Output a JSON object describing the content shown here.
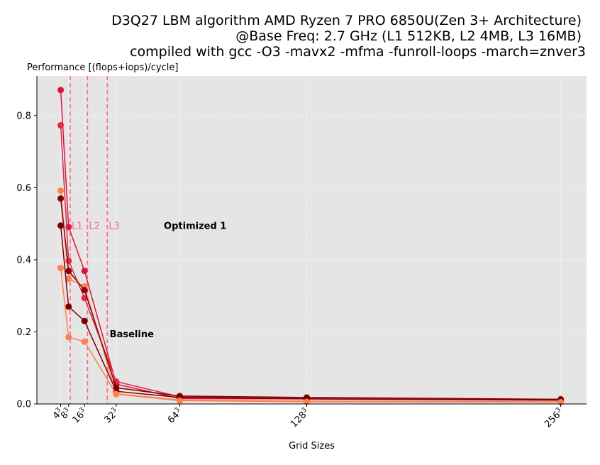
{
  "chart_data": {
    "type": "line",
    "title_lines": [
      "D3Q27 LBM algorithm AMD Ryzen 7 PRO 6850U(Zen 3+ Architecture)",
      "@Base Freq: 2.7 GHz (L1 512KB, L2 4MB, L3 16MB)",
      "compiled with gcc -O3 -mavx2 -mfma -funroll-loops -march=znver3"
    ],
    "xlabel": "Grid Sizes",
    "ylabel": "Performance [(flops+iops)/cycle]",
    "x": [
      4,
      8,
      16,
      32,
      64,
      128,
      256
    ],
    "x_ticks": [
      {
        "x": 4,
        "base": "4",
        "exp": "3"
      },
      {
        "x": 8,
        "base": "8",
        "exp": "3"
      },
      {
        "x": 16,
        "base": "16",
        "exp": "3"
      },
      {
        "x": 32,
        "base": "32",
        "exp": "3"
      },
      {
        "x": 64,
        "base": "64",
        "exp": "3"
      },
      {
        "x": 128,
        "base": "128",
        "exp": "3"
      },
      {
        "x": 256,
        "base": "256",
        "exp": "3"
      }
    ],
    "ylim": [
      0,
      0.91
    ],
    "xlim": [
      -8,
      269
    ],
    "y_ticks": [
      {
        "y": 0.0,
        "label": "0.0"
      },
      {
        "y": 0.2,
        "label": "0.2"
      },
      {
        "y": 0.4,
        "label": "0.4"
      },
      {
        "y": 0.6,
        "label": "0.6"
      },
      {
        "y": 0.8,
        "label": "0.8"
      }
    ],
    "grid": true,
    "background": "#e5e5e5",
    "cache_lines": [
      {
        "label": "L1",
        "x": 8.8
      },
      {
        "label": "L2",
        "x": 17.5
      },
      {
        "label": "L3",
        "x": 27.5
      }
    ],
    "cache_line_color": "#ff6b82",
    "annotations": [
      {
        "text": "Optimized 1",
        "x": 56,
        "y": 0.495
      },
      {
        "text": "Baseline",
        "x": 28.7,
        "y": 0.195
      }
    ],
    "series": [
      {
        "color": "#dc143c",
        "values": [
          0.871,
          0.491,
          0.369,
          0.055,
          0.015,
          0.014,
          0.01
        ]
      },
      {
        "color": "#e0284a",
        "values": [
          0.773,
          0.397,
          0.294,
          0.062,
          0.02,
          0.016,
          0.012
        ]
      },
      {
        "color": "#ff7f50",
        "values": [
          0.592,
          0.347,
          0.326,
          0.028,
          0.011,
          0.008,
          0.006
        ]
      },
      {
        "color": "#8b0000",
        "values": [
          0.57,
          0.369,
          0.316,
          0.045,
          0.022,
          0.018,
          0.013
        ]
      },
      {
        "color": "#7a0000",
        "values": [
          0.495,
          0.27,
          0.23,
          0.035,
          0.018,
          0.014,
          0.011
        ]
      },
      {
        "color": "#ff7f50",
        "values": [
          0.377,
          0.185,
          0.173,
          0.027,
          0.009,
          0.006,
          0.005
        ]
      }
    ]
  }
}
